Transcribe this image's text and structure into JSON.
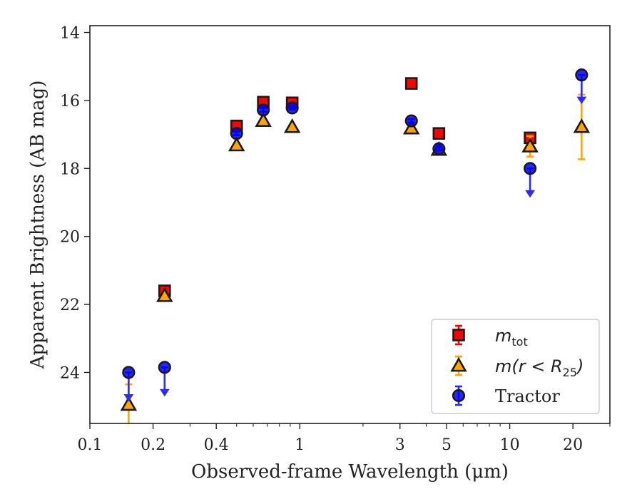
{
  "chart_data": {
    "type": "scatter",
    "xscale": "log",
    "xlim": [
      0.1,
      30
    ],
    "ylim": [
      25.5,
      13.8
    ],
    "y_inverted": true,
    "grid": false,
    "legend_position": "bottom-right",
    "xlabel": "Observed-frame Wavelength (μm)",
    "ylabel": "Apparent Brightness (AB mag)",
    "x_ticks": [
      {
        "value": 0.1,
        "label": "0.1"
      },
      {
        "value": 0.2,
        "label": "0.2"
      },
      {
        "value": 0.4,
        "label": "0.4"
      },
      {
        "value": 1,
        "label": "1"
      },
      {
        "value": 3,
        "label": "3"
      },
      {
        "value": 5,
        "label": "5"
      },
      {
        "value": 10,
        "label": "10"
      },
      {
        "value": 20,
        "label": "20"
      }
    ],
    "y_ticks": [
      {
        "value": 14,
        "label": "14"
      },
      {
        "value": 16,
        "label": "16"
      },
      {
        "value": 18,
        "label": "18"
      },
      {
        "value": 20,
        "label": "20"
      },
      {
        "value": 22,
        "label": "22"
      },
      {
        "value": 24,
        "label": "24"
      }
    ],
    "series": [
      {
        "name": "m_tot",
        "legend_label": {
          "base": "m",
          "sub": "tot"
        },
        "marker": "square",
        "color": "#ff0000",
        "edge": "#1a1a1a",
        "points": [
          {
            "x": 0.227,
            "y": 21.6,
            "err": 0.05
          },
          {
            "x": 0.5,
            "y": 16.75,
            "err": 0.05
          },
          {
            "x": 0.67,
            "y": 16.05,
            "err": 0.05
          },
          {
            "x": 0.92,
            "y": 16.07,
            "err": 0.05
          },
          {
            "x": 3.4,
            "y": 15.5,
            "err": 0.05
          },
          {
            "x": 4.6,
            "y": 16.97,
            "err": 0.05
          },
          {
            "x": 12.5,
            "y": 17.1,
            "err": 0.05
          }
        ]
      },
      {
        "name": "m(r < R25)",
        "legend_label": {
          "base": "m(r < R",
          "sub": "25",
          "tail": ")"
        },
        "marker": "triangle",
        "color": "#ffa500",
        "edge": "#1a1a1a",
        "points": [
          {
            "x": 0.153,
            "y": 24.95,
            "err_low": 1.4,
            "err_high": 0.6
          },
          {
            "x": 0.227,
            "y": 21.75,
            "err": 0.05
          },
          {
            "x": 0.5,
            "y": 17.32,
            "err": 0.05
          },
          {
            "x": 0.67,
            "y": 16.6,
            "err": 0.05
          },
          {
            "x": 0.92,
            "y": 16.78,
            "err": 0.05
          },
          {
            "x": 3.4,
            "y": 16.82,
            "err": 0.05
          },
          {
            "x": 4.6,
            "y": 17.45,
            "err": 0.05
          },
          {
            "x": 12.5,
            "y": 17.35,
            "err": 0.3
          },
          {
            "x": 22.0,
            "y": 16.78,
            "err": 0.95
          }
        ]
      },
      {
        "name": "Tractor",
        "legend_label": {
          "base": "Tractor"
        },
        "marker": "circle",
        "color": "#0000ff",
        "edge": "#1a1a1a",
        "points": [
          {
            "x": 0.153,
            "y": 24.0,
            "upper_limit": true
          },
          {
            "x": 0.227,
            "y": 23.85,
            "upper_limit": true
          },
          {
            "x": 0.5,
            "y": 16.97,
            "err": 0.05
          },
          {
            "x": 0.67,
            "y": 16.28,
            "err": 0.05
          },
          {
            "x": 0.92,
            "y": 16.22,
            "err": 0.05
          },
          {
            "x": 3.4,
            "y": 16.6,
            "err": 0.05
          },
          {
            "x": 4.6,
            "y": 17.42,
            "err": 0.05
          },
          {
            "x": 12.5,
            "y": 18.0,
            "upper_limit": true
          },
          {
            "x": 22.0,
            "y": 15.25,
            "upper_limit": true
          }
        ]
      }
    ]
  }
}
